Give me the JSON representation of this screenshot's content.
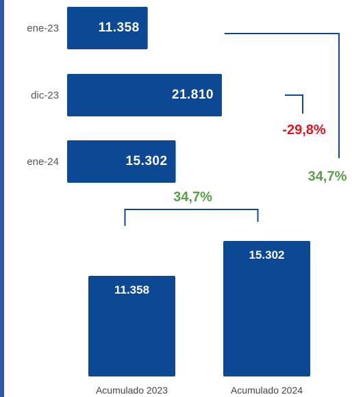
{
  "colors": {
    "bar": "#0c4893",
    "bracket": "#0c4893",
    "positive": "#57a046",
    "negative": "#e3131b",
    "accent": "#2a5aa8"
  },
  "chart_data": [
    {
      "type": "bar",
      "orientation": "horizontal",
      "categories": [
        "ene-23",
        "dic-23",
        "ene-24"
      ],
      "values": [
        11358,
        21810,
        15302
      ],
      "value_labels": [
        "11.358",
        "21.810",
        "15.302"
      ],
      "annotations": [
        {
          "text": "-29,8%",
          "from": "dic-23",
          "to": "ene-24",
          "color": "negative"
        },
        {
          "text": "34,7%",
          "from": "ene-23",
          "to": "ene-24",
          "color": "positive"
        }
      ]
    },
    {
      "type": "bar",
      "orientation": "vertical",
      "categories": [
        "Acumulado 2023",
        "Acumulado 2024"
      ],
      "values": [
        11358,
        15302
      ],
      "value_labels": [
        "11.358",
        "15.302"
      ],
      "annotations": [
        {
          "text": "34,7%",
          "from": "Acumulado 2023",
          "to": "Acumulado 2024",
          "color": "positive"
        }
      ]
    }
  ]
}
